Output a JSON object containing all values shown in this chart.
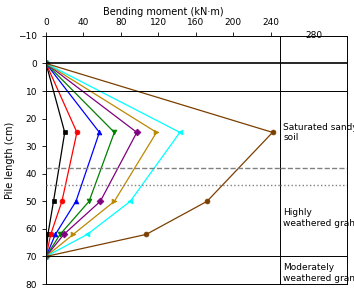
{
  "xlabel_top": "Bending moment (kN·m)",
  "ylabel": "Pile length (cm)",
  "xlim": [
    0,
    250
  ],
  "ylim": [
    80,
    -10
  ],
  "xticks": [
    0,
    40,
    80,
    120,
    160,
    200,
    240
  ],
  "yticks": [
    -10,
    0,
    10,
    20,
    30,
    40,
    50,
    60,
    70,
    80
  ],
  "hlines": [
    {
      "y": 0,
      "style": "-",
      "lw": 1.2,
      "color": "black"
    },
    {
      "y": 10,
      "style": "-",
      "lw": 0.7,
      "color": "black"
    },
    {
      "y": 38,
      "style": "--",
      "lw": 1.0,
      "color": "gray"
    },
    {
      "y": 44,
      "style": ":",
      "lw": 1.0,
      "color": "gray"
    },
    {
      "y": 70,
      "style": "-",
      "lw": 0.7,
      "color": "black"
    }
  ],
  "series": [
    {
      "color": "black",
      "marker": "s",
      "depths": [
        0,
        25,
        50,
        62,
        70
      ],
      "moments": [
        0,
        20,
        8,
        2,
        0
      ]
    },
    {
      "color": "red",
      "marker": "o",
      "depths": [
        0,
        25,
        50,
        62,
        70
      ],
      "moments": [
        0,
        33,
        17,
        5,
        0
      ]
    },
    {
      "color": "blue",
      "marker": "^",
      "depths": [
        0,
        25,
        50,
        62,
        70
      ],
      "moments": [
        0,
        57,
        32,
        10,
        0
      ]
    },
    {
      "color": "green",
      "marker": "v",
      "depths": [
        0,
        25,
        50,
        62,
        70
      ],
      "moments": [
        0,
        73,
        46,
        15,
        0
      ]
    },
    {
      "color": "purple",
      "marker": "D",
      "depths": [
        0,
        25,
        50,
        62,
        70
      ],
      "moments": [
        0,
        97,
        58,
        19,
        0
      ]
    },
    {
      "color": "#bb8800",
      "marker": ">",
      "depths": [
        0,
        25,
        50,
        62,
        70
      ],
      "moments": [
        0,
        118,
        73,
        29,
        0
      ]
    },
    {
      "color": "cyan",
      "marker": "<",
      "depths": [
        0,
        25,
        50,
        62,
        70
      ],
      "moments": [
        0,
        143,
        90,
        44,
        0
      ]
    },
    {
      "color": "#7B3F00",
      "marker": "o",
      "depths": [
        0,
        25,
        50,
        62,
        70
      ],
      "moments": [
        0,
        242,
        172,
        107,
        0
      ]
    }
  ],
  "fontsize": 7.0,
  "annotations": [
    {
      "text": "Saturated sandy\nsoil",
      "y": 25
    },
    {
      "text": "Highly\nweathered grahite",
      "y": 56
    },
    {
      "text": "Moderately\nweathered granite",
      "y": 76
    }
  ]
}
